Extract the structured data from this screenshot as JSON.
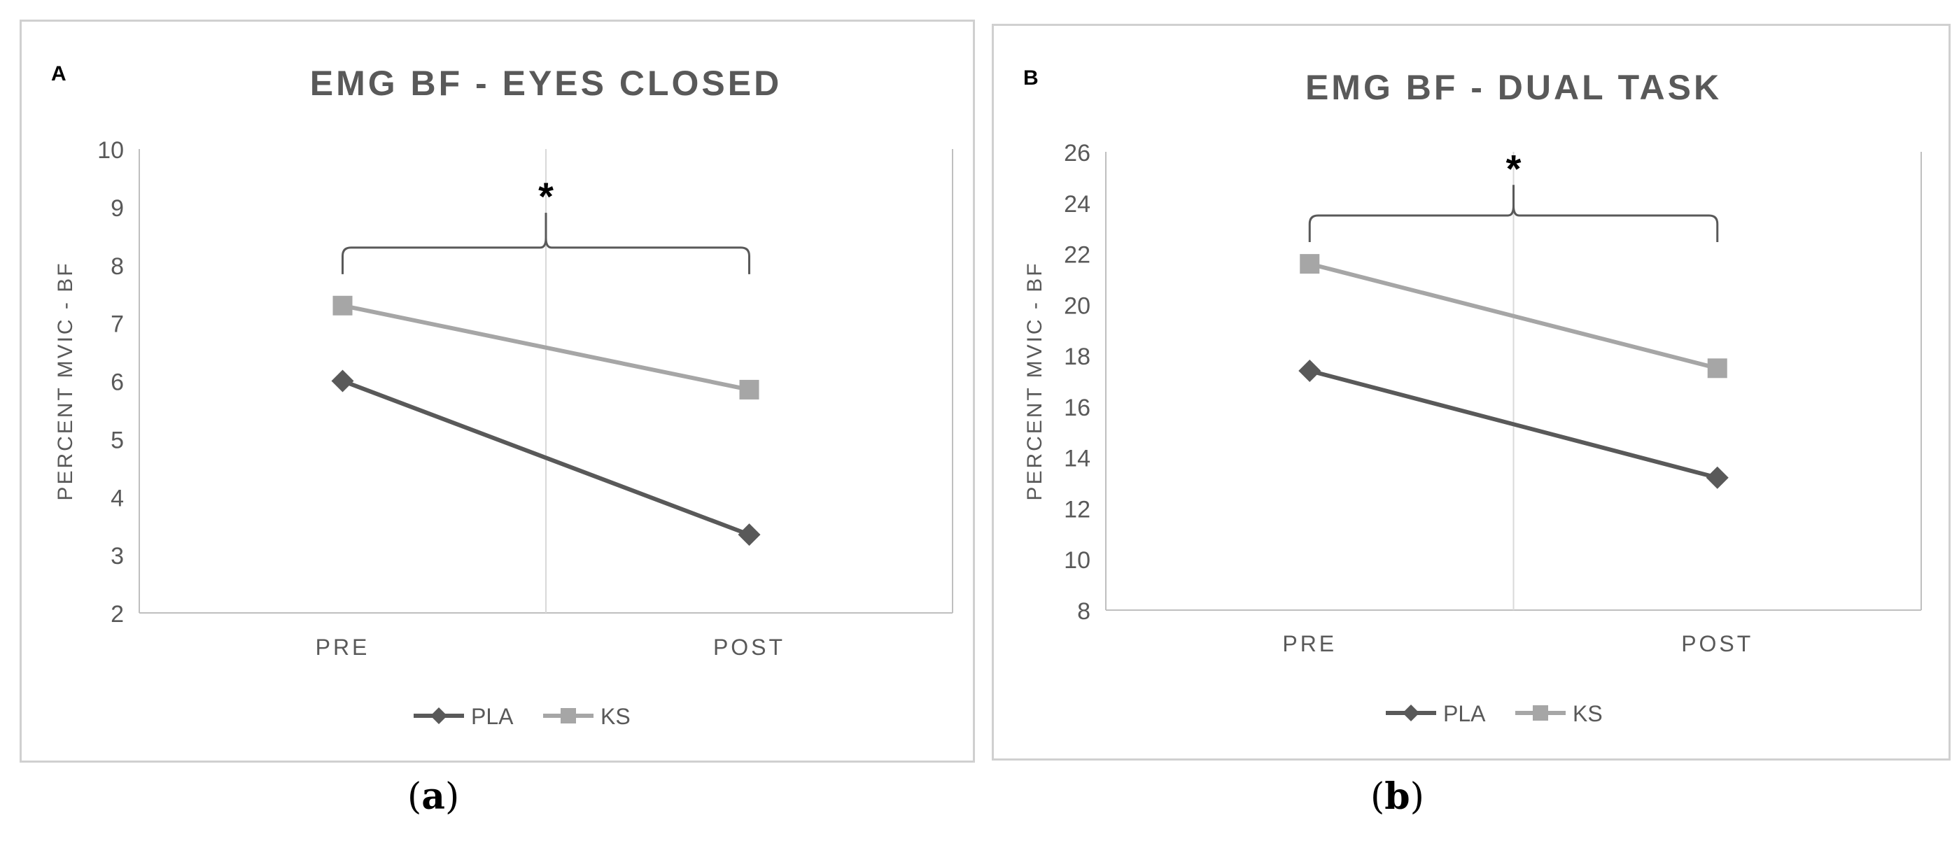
{
  "colors": {
    "pla": "#595959",
    "ks": "#a6a6a6",
    "grid": "#d9d9d9",
    "axis": "#bfbfbf",
    "title": "#595959",
    "text": "#595959",
    "bracket": "#595959"
  },
  "captions": {
    "a": "a",
    "b": "b"
  },
  "chart_data": [
    {
      "type": "line",
      "panel_label": "A",
      "title": "EMG BF - EYES CLOSED",
      "ylabel": "PERCENT MVIC - BF",
      "xlabel": "",
      "categories": [
        "PRE",
        "POST"
      ],
      "ylim": [
        2,
        10
      ],
      "yticks": [
        "2",
        "3",
        "4",
        "5",
        "6",
        "7",
        "8",
        "9",
        "10"
      ],
      "series": [
        {
          "name": "PLA",
          "values": [
            6.0,
            3.35
          ],
          "marker": "diamond",
          "color": "#595959"
        },
        {
          "name": "KS",
          "values": [
            7.3,
            5.85
          ],
          "marker": "square",
          "color": "#a6a6a6"
        }
      ],
      "annotation": {
        "text": "*",
        "y": 8.3,
        "peak": 8.9
      },
      "legend": "bottom",
      "grid": "vertical center line"
    },
    {
      "type": "line",
      "panel_label": "B",
      "title": "EMG BF - DUAL TASK",
      "ylabel": "PERCENT MVIC - BF",
      "xlabel": "",
      "categories": [
        "PRE",
        "POST"
      ],
      "ylim": [
        8,
        26
      ],
      "yticks": [
        "8",
        "10",
        "12",
        "14",
        "16",
        "18",
        "20",
        "22",
        "24",
        "26"
      ],
      "series": [
        {
          "name": "PLA",
          "values": [
            17.4,
            13.2
          ],
          "marker": "diamond",
          "color": "#595959"
        },
        {
          "name": "KS",
          "values": [
            21.6,
            17.5
          ],
          "marker": "square",
          "color": "#a6a6a6"
        }
      ],
      "annotation": {
        "text": "*",
        "y": 23.5,
        "peak": 24.7
      },
      "legend": "bottom",
      "grid": "vertical center line"
    }
  ]
}
